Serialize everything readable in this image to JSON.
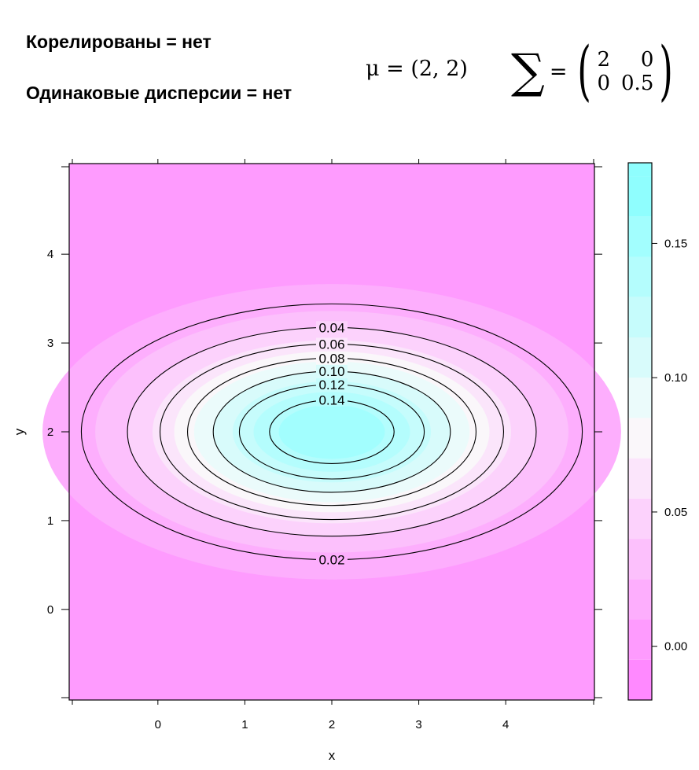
{
  "annotations": {
    "correlated": "Корелированы = нет",
    "equal_variances": "Одинаковые дисперсии = нет",
    "mu": "μ = (2, 2)",
    "sigma_symbol": "∑",
    "sigma_equals": "=",
    "sigma_matrix": [
      "2",
      "0",
      "0",
      "0.5"
    ]
  },
  "chart_data": {
    "type": "contour",
    "distribution": {
      "mean": [
        2,
        2
      ],
      "covariance": [
        [
          2,
          0
        ],
        [
          0,
          0.5
        ]
      ]
    },
    "xlabel": "x",
    "ylabel": "y",
    "xlim": [
      -1.02,
      5.02
    ],
    "ylim": [
      -1.02,
      5.02
    ],
    "x_ticks": [
      0,
      1,
      2,
      3,
      4
    ],
    "y_ticks": [
      0,
      1,
      2,
      3,
      4
    ],
    "contour_levels": [
      0.02,
      0.04,
      0.06,
      0.08,
      0.1,
      0.12,
      0.14
    ],
    "contour_labels": [
      "0.02",
      "0.04",
      "0.06",
      "0.08",
      "0.10",
      "0.12",
      "0.14"
    ],
    "fill_breaks": [
      -0.02,
      -0.005,
      0.01,
      0.025,
      0.04,
      0.055,
      0.07,
      0.085,
      0.1,
      0.115,
      0.13,
      0.145,
      0.16,
      0.175
    ],
    "colorbar": {
      "range": [
        -0.02,
        0.18
      ],
      "ticks": [
        0.0,
        0.05,
        0.1,
        0.15
      ],
      "tick_labels": [
        "0.00",
        "0.05",
        "0.10",
        "0.15"
      ]
    },
    "colors": {
      "low": "#ff80ff",
      "mid": "#fafafa",
      "high": "#80ffff",
      "line": "#000000"
    },
    "grid": false
  }
}
